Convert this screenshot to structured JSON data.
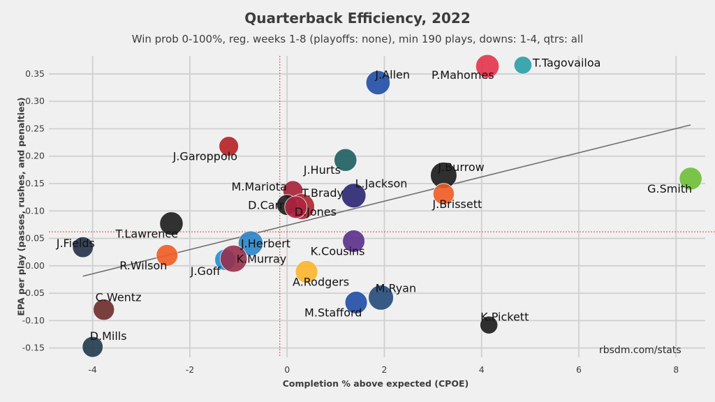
{
  "chart_data": {
    "type": "scatter",
    "title": "Quarterback Efficiency, 2022",
    "subtitle": "Win prob 0-100%, reg. weeks 1-8 (playoffs: none), min 190 plays, downs: 1-4, qtrs: all",
    "xlabel": "Completion % above expected (CPOE)",
    "ylabel": "EPA per play (passes, rushes, and penalties)",
    "credit": "rbsdm.com/stats",
    "xlim": [
      -4.9,
      8.6
    ],
    "ylim": [
      -0.167,
      0.383
    ],
    "x_ticks": [
      -4,
      -2,
      0,
      2,
      4,
      6,
      8
    ],
    "y_ticks": [
      -0.15,
      -0.1,
      -0.05,
      0.0,
      0.05,
      0.1,
      0.15,
      0.2,
      0.25,
      0.3,
      0.35
    ],
    "y_tick_labels": [
      "-0.15",
      "-0.10",
      "-0.05",
      "0.00",
      "0.05",
      "0.10",
      "0.15",
      "0.20",
      "0.25",
      "0.30",
      "0.35"
    ],
    "grid": true,
    "reference_lines": {
      "x_mean": -0.15,
      "y_mean": 0.062,
      "color": "#e8403a"
    },
    "trend_line": {
      "x": [
        -4.2,
        8.3
      ],
      "y": [
        -0.019,
        0.257
      ],
      "color": "#6e6e6e"
    },
    "points": [
      {
        "name": "T.Tagovailoa",
        "x": 4.85,
        "y": 0.366,
        "plays": 190,
        "color": "#2a9da7"
      },
      {
        "name": "P.Mahomes",
        "x": 4.12,
        "y": 0.364,
        "plays": 330,
        "color": "#e3334a"
      },
      {
        "name": "J.Allen",
        "x": 1.87,
        "y": 0.334,
        "plays": 350,
        "color": "#1f4da6"
      },
      {
        "name": "J.Garoppolo",
        "x": -1.2,
        "y": 0.218,
        "plays": 230,
        "color": "#b52024"
      },
      {
        "name": "J.Hurts",
        "x": 1.2,
        "y": 0.193,
        "plays": 310,
        "color": "#1c5e60"
      },
      {
        "name": "J.Burrow",
        "x": 3.22,
        "y": 0.165,
        "plays": 420,
        "color": "#1a1a1a"
      },
      {
        "name": "G.Smith",
        "x": 8.3,
        "y": 0.159,
        "plays": 310,
        "color": "#6cbf36"
      },
      {
        "name": "M.Mariota",
        "x": 0.12,
        "y": 0.137,
        "plays": 240,
        "color": "#a51f36"
      },
      {
        "name": "J.Brissett",
        "x": 3.22,
        "y": 0.131,
        "plays": 270,
        "color": "#f05b24"
      },
      {
        "name": "L.Jackson",
        "x": 1.37,
        "y": 0.128,
        "plays": 360,
        "color": "#2a2472"
      },
      {
        "name": "T.Brady",
        "x": 0.3,
        "y": 0.108,
        "plays": 400,
        "color": "#a8252f"
      },
      {
        "name": "D.Carr",
        "x": 0.0,
        "y": 0.111,
        "plays": 260,
        "color": "#1c1c1c"
      },
      {
        "name": "D.Jones",
        "x": 0.18,
        "y": 0.107,
        "plays": 300,
        "color": "#b02340"
      },
      {
        "name": "T.Lawrence",
        "x": -2.38,
        "y": 0.077,
        "plays": 330,
        "color": "#1c1c1c"
      },
      {
        "name": "J.Fields",
        "x": -4.2,
        "y": 0.034,
        "plays": 260,
        "color": "#223047"
      },
      {
        "name": "K.Cousins",
        "x": 1.37,
        "y": 0.045,
        "plays": 300,
        "color": "#5b2f8a"
      },
      {
        "name": "J.Herbert",
        "x": -0.75,
        "y": 0.041,
        "plays": 370,
        "color": "#2a84c8"
      },
      {
        "name": "R.Wilson",
        "x": -2.47,
        "y": 0.019,
        "plays": 280,
        "color": "#f05b24"
      },
      {
        "name": "J.Goff",
        "x": -1.27,
        "y": 0.011,
        "plays": 270,
        "color": "#1d8fd6"
      },
      {
        "name": "K.Murray",
        "x": -1.1,
        "y": 0.013,
        "plays": 440,
        "color": "#982f4d"
      },
      {
        "name": "A.Rodgers",
        "x": 0.4,
        "y": -0.011,
        "plays": 300,
        "color": "#fbb52a"
      },
      {
        "name": "M.Ryan",
        "x": 1.93,
        "y": -0.058,
        "plays": 380,
        "color": "#244a7a"
      },
      {
        "name": "M.Stafford",
        "x": 1.42,
        "y": -0.067,
        "plays": 300,
        "color": "#1f4da6"
      },
      {
        "name": "C.Wentz",
        "x": -3.77,
        "y": -0.08,
        "plays": 270,
        "color": "#6e2a2a"
      },
      {
        "name": "K.Pickett",
        "x": 4.15,
        "y": -0.108,
        "plays": 190,
        "color": "#1a1a1a"
      },
      {
        "name": "D.Mills",
        "x": -4.0,
        "y": -0.148,
        "plays": 260,
        "color": "#1f3a4a"
      }
    ]
  }
}
